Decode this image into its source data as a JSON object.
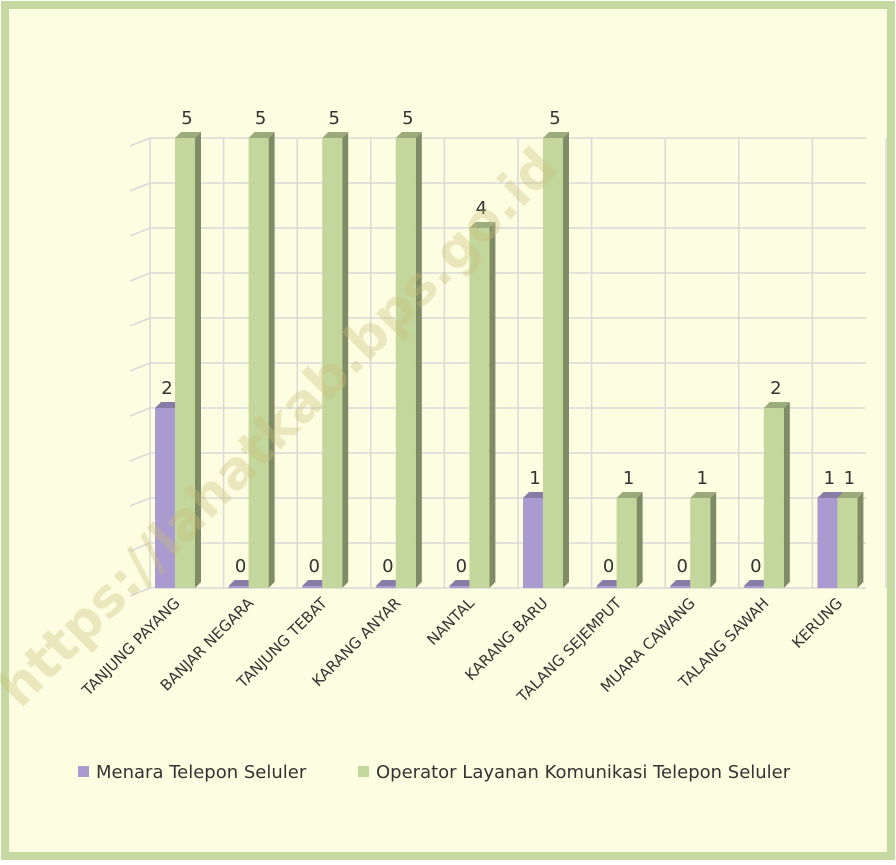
{
  "chart_data": {
    "type": "bar",
    "watermark": "https://lahatkab.bps.go.id",
    "categories": [
      "TANJUNG PAYANG",
      "BANJAR NEGARA",
      "TANJUNG TEBAT",
      "KARANG ANYAR",
      "NANTAL",
      "KARANG BARU",
      "TALANG SEJEMPUT",
      "MUARA CAWANG",
      "TALANG SAWAH",
      "KERUNG"
    ],
    "series": [
      {
        "name": "Menara Telepon Seluler",
        "color": "#a99bcf",
        "values": [
          2,
          0,
          0,
          0,
          0,
          1,
          0,
          0,
          0,
          1
        ]
      },
      {
        "name": "Operator Layanan Komunikasi Telepon Seluler",
        "color": "#c3d69b",
        "values": [
          5,
          5,
          5,
          5,
          4,
          5,
          1,
          1,
          2,
          1
        ]
      }
    ],
    "ylim": [
      0,
      5
    ],
    "yticks": [
      0,
      0.5,
      1,
      1.5,
      2,
      2.5,
      3,
      3.5,
      4,
      4.5,
      5
    ],
    "grid": true,
    "legend": "bottom"
  }
}
